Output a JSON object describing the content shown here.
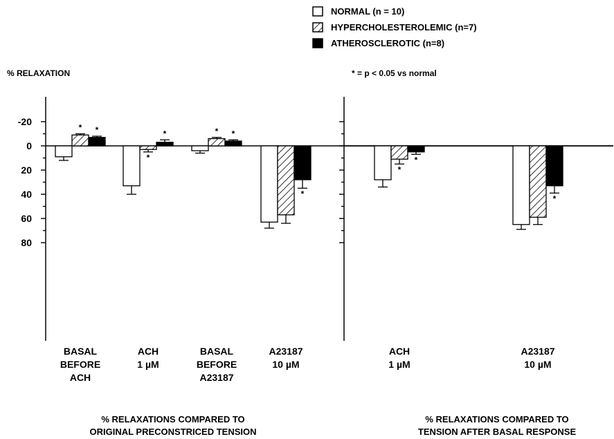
{
  "legend": {
    "items": [
      {
        "label": "NORMAL (n = 10)",
        "pattern": "open"
      },
      {
        "label": "HYPERCHOLESTEROLEMIC (n=7)",
        "pattern": "hatched"
      },
      {
        "label": "ATHEROSCLEROTIC (n=8)",
        "pattern": "solid"
      }
    ],
    "placement": "top-right"
  },
  "ylabel": "% RELAXATION",
  "significance_note": "* = p < 0.05 vs normal",
  "colors": {
    "line": "#000000",
    "background": "#ffffff"
  },
  "chart_data": [
    {
      "type": "bar",
      "title": "% RELAXATIONS COMPARED TO\nORIGINAL PRECONSTRICED TENSION",
      "ylabel": "% RELAXATION",
      "yticks": [
        -20,
        0,
        20,
        40,
        60,
        80
      ],
      "ytick_labels": [
        "-20",
        "0",
        "20",
        "40",
        "60",
        "80"
      ],
      "ylim": [
        -20,
        80
      ],
      "y_inverted": true,
      "categories": [
        "BASAL\nBEFORE\nACH",
        "ACH\n1 µM",
        "BASAL\nBEFORE\nA23187",
        "A23187\n10  µM"
      ],
      "series": [
        {
          "name": "NORMAL (n = 10)",
          "values": [
            9,
            33,
            4,
            63
          ],
          "errors": [
            3,
            7,
            2,
            5
          ],
          "significant": [
            false,
            false,
            false,
            false
          ]
        },
        {
          "name": "HYPERCHOLESTEROLEMIC (n=7)",
          "values": [
            -9,
            3,
            -6,
            57
          ],
          "errors": [
            1,
            2,
            1,
            7
          ],
          "significant": [
            true,
            true,
            true,
            false
          ]
        },
        {
          "name": "ATHEROSCLEROTIC (n=8)",
          "values": [
            -7,
            -3,
            -4,
            28
          ],
          "errors": [
            1,
            2,
            1,
            7
          ],
          "significant": [
            true,
            true,
            true,
            true
          ]
        }
      ],
      "grid": false,
      "annotation": "*"
    },
    {
      "type": "bar",
      "title": "% RELAXATIONS COMPARED TO\nTENSION AFTER BASAL RESPONSE",
      "yticks": [
        -20,
        0,
        20,
        40,
        60,
        80
      ],
      "ylim": [
        -20,
        80
      ],
      "y_inverted": true,
      "categories": [
        "ACH\n1 µM",
        "A23187\n10  µM"
      ],
      "series": [
        {
          "name": "NORMAL (n = 10)",
          "values": [
            28,
            65
          ],
          "errors": [
            6,
            4
          ],
          "significant": [
            false,
            false
          ]
        },
        {
          "name": "HYPERCHOLESTEROLEMIC (n=7)",
          "values": [
            11,
            59
          ],
          "errors": [
            4,
            6
          ],
          "significant": [
            true,
            false
          ]
        },
        {
          "name": "ATHEROSCLEROTIC (n=8)",
          "values": [
            5,
            33
          ],
          "errors": [
            2,
            6
          ],
          "significant": [
            true,
            true
          ]
        }
      ],
      "grid": false,
      "annotation": "*"
    }
  ]
}
